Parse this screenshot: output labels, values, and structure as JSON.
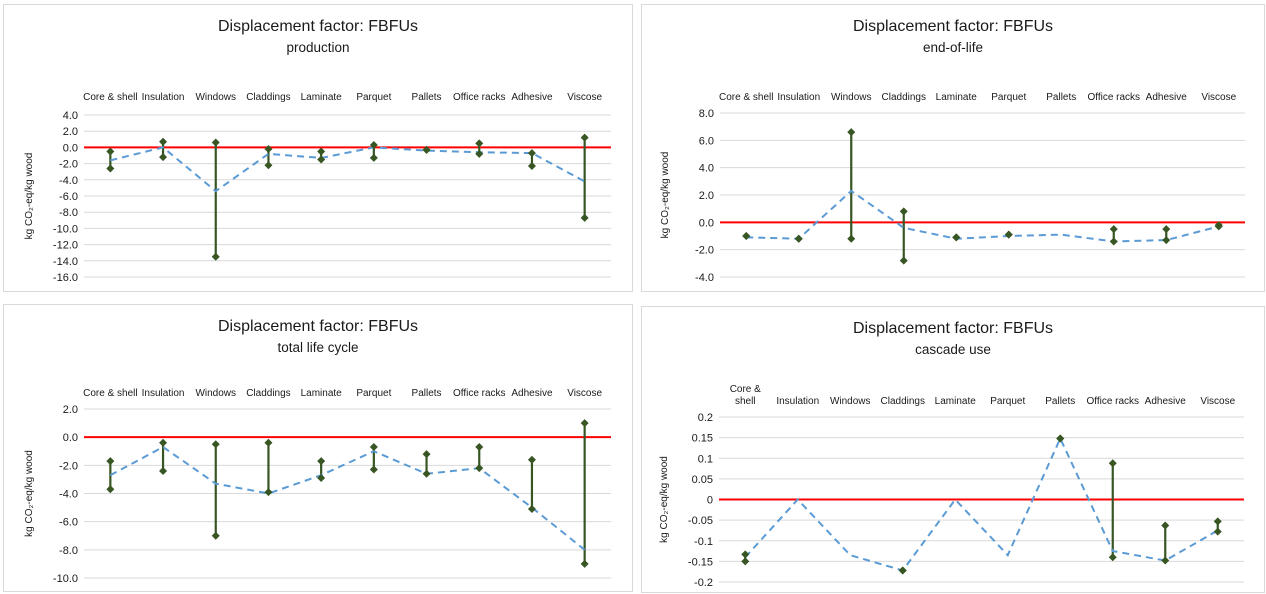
{
  "chart_data": [
    {
      "type": "line",
      "title": "Displacement factor: FBFUs",
      "subtitle": "production",
      "ylabel": "kg CO₂-eq/kg wood",
      "categories": [
        "Core & shell",
        "Insulation",
        "Windows",
        "Claddings",
        "Laminate",
        "Parquet",
        "Pallets",
        "Office racks",
        "Adhesive",
        "Viscose"
      ],
      "ylim": [
        -16,
        4
      ],
      "yticks": [
        "4.0",
        "2.0",
        "0.0",
        "-2.0",
        "-4.0",
        "-6.0",
        "-8.0",
        "-10.0",
        "-12.0",
        "-14.0",
        "-16.0"
      ],
      "series": [
        {
          "values": [
            -1.6,
            0.0,
            -5.4,
            -0.8,
            -1.3,
            0.0,
            -0.4,
            -0.6,
            -0.7,
            -4.2
          ]
        },
        {
          "values": [
            -0.5,
            0.7,
            0.6,
            -0.2,
            -0.5,
            0.3,
            -0.3,
            0.5,
            -0.7,
            1.2
          ]
        },
        {
          "values": [
            -2.6,
            -1.2,
            -13.5,
            -2.2,
            -1.5,
            -1.3,
            -0.3,
            -0.8,
            -2.3,
            -8.7
          ]
        }
      ],
      "reference_line": 0
    },
    {
      "type": "line",
      "title": "Displacement factor: FBFUs",
      "subtitle": "end-of-life",
      "ylabel": "kg CO₂-eq/kg wood",
      "categories": [
        "Core & shell",
        "Insulation",
        "Windows",
        "Claddings",
        "Laminate",
        "Parquet",
        "Pallets",
        "Office racks",
        "Adhesive",
        "Viscose"
      ],
      "ylim": [
        -4,
        8
      ],
      "yticks": [
        "8.0",
        "6.0",
        "4.0",
        "2.0",
        "0.0",
        "-2.0",
        "-4.0"
      ],
      "series": [
        {
          "values": [
            -1.1,
            -1.2,
            2.3,
            -0.4,
            -1.2,
            -1.0,
            -0.9,
            -1.4,
            -1.3,
            -0.3
          ]
        },
        {
          "values": [
            -1.0,
            -1.2,
            6.6,
            0.8,
            -1.1,
            -0.9,
            null,
            -0.5,
            -0.5,
            -0.2
          ]
        },
        {
          "values": [
            -1.0,
            -1.2,
            -1.2,
            -2.8,
            -1.1,
            -0.9,
            null,
            -1.4,
            -1.3,
            -0.3
          ]
        }
      ],
      "reference_line": 0
    },
    {
      "type": "line",
      "title": "Displacement factor: FBFUs",
      "subtitle": "total life cycle",
      "ylabel": "kg CO₂-eq/kg wood",
      "categories": [
        "Core & shell",
        "Insulation",
        "Windows",
        "Claddings",
        "Laminate",
        "Parquet",
        "Pallets",
        "Office racks",
        "Adhesive",
        "Viscose"
      ],
      "ylim": [
        -10,
        2
      ],
      "yticks": [
        "2.0",
        "0.0",
        "-2.0",
        "-4.0",
        "-6.0",
        "-8.0",
        "-10.0"
      ],
      "series": [
        {
          "values": [
            -2.7,
            -0.7,
            -3.3,
            -4.0,
            -2.7,
            -1.0,
            -2.6,
            -2.2,
            -5.0,
            -8.0
          ]
        },
        {
          "values": [
            -1.7,
            -0.4,
            -0.5,
            -0.4,
            -1.7,
            -0.7,
            -1.2,
            -0.7,
            -1.6,
            1.0
          ]
        },
        {
          "values": [
            -3.7,
            -2.4,
            -7.0,
            -3.9,
            -2.9,
            -2.3,
            -2.6,
            -2.2,
            -5.1,
            -9.0
          ]
        }
      ],
      "reference_line": 0
    },
    {
      "type": "line",
      "title": "Displacement factor: FBFUs",
      "subtitle": "cascade use",
      "ylabel": "kg CO₂-eq/kg wood",
      "categories": [
        "Core & shell",
        "Insulation",
        "Windows",
        "Claddings",
        "Laminate",
        "Parquet",
        "Pallets",
        "Office racks",
        "Adhesive",
        "Viscose"
      ],
      "ylim": [
        -0.2,
        0.2
      ],
      "yticks": [
        "0.2",
        "0.15",
        "0.1",
        "0.05",
        "0",
        "-0.05",
        "-0.1",
        "-0.15",
        "-0.2"
      ],
      "series": [
        {
          "values": [
            -0.14,
            0.0,
            -0.135,
            -0.172,
            0.0,
            -0.135,
            0.148,
            -0.125,
            -0.148,
            -0.075
          ]
        },
        {
          "values": [
            -0.133,
            null,
            null,
            -0.172,
            null,
            null,
            0.148,
            0.088,
            -0.063,
            -0.053
          ]
        },
        {
          "values": [
            -0.15,
            null,
            null,
            -0.172,
            null,
            null,
            0.148,
            -0.14,
            -0.148,
            -0.078
          ]
        }
      ],
      "reference_line": 0
    }
  ],
  "colors": {
    "mean_line": "#5b9bd5",
    "range_line": "#375623",
    "marker": "#375623",
    "zero_line": "#ff0000",
    "grid": "#d9d9d9",
    "text": "#1a1a1a"
  }
}
